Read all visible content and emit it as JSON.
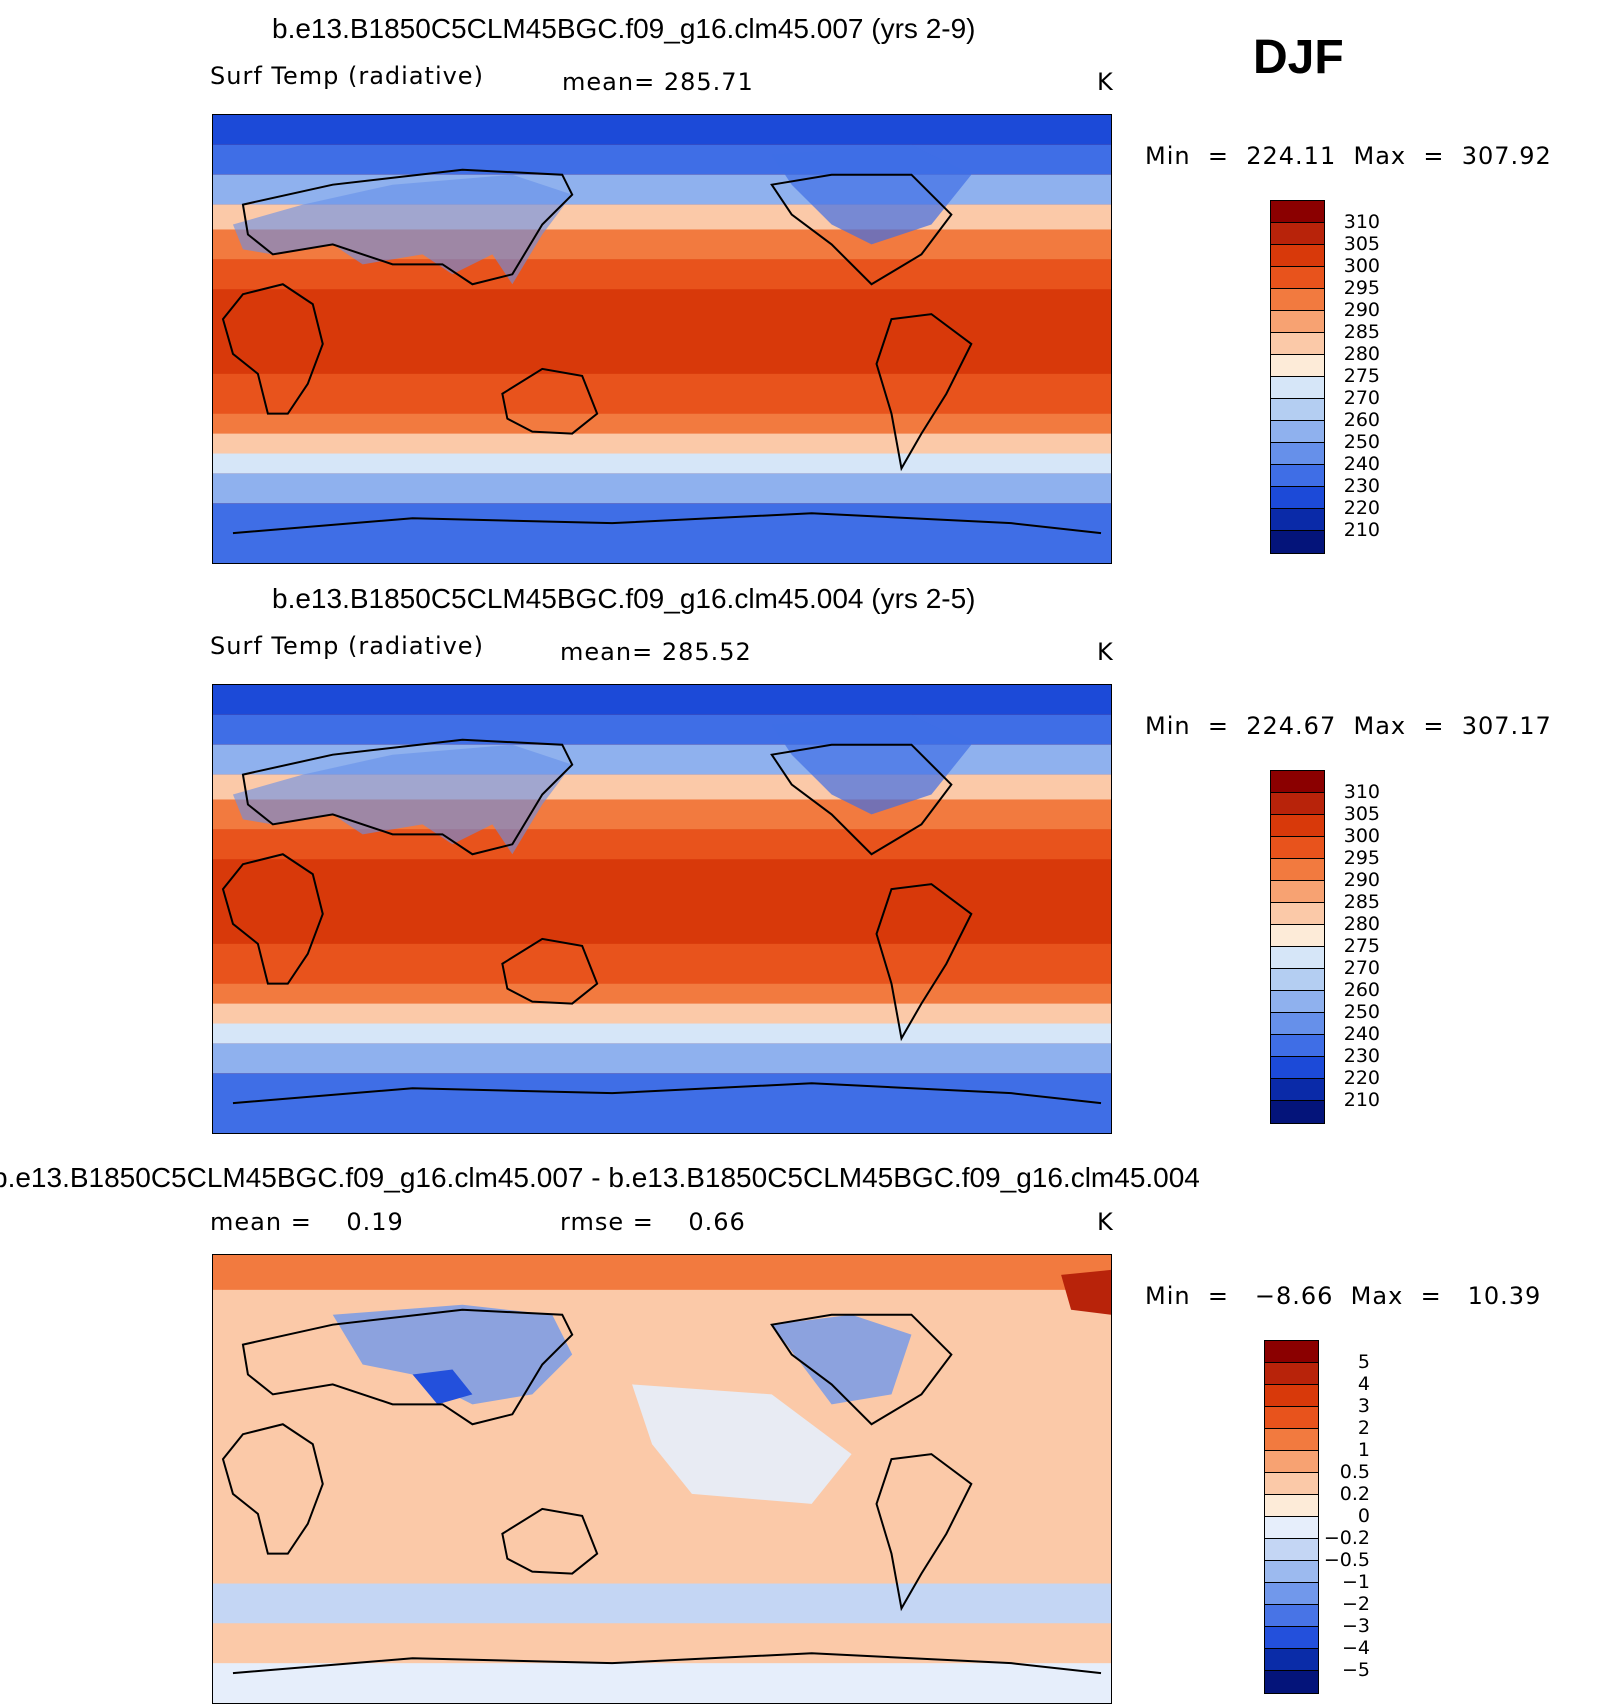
{
  "season": "DJF",
  "chart_data": [
    {
      "type": "heatmap",
      "title": "b.e13.B1850C5CLM45BGC.f09_g16.clm45.007 (yrs 2-9)",
      "variable": "Surf Temp (radiative)",
      "mean_label": "mean=",
      "mean": "285.71",
      "units": "K",
      "min_label": "Min",
      "max_label": "Max",
      "eq": "=",
      "min": "224.11",
      "max": "307.92",
      "colorbar": {
        "levels": [
          "310",
          "305",
          "300",
          "295",
          "290",
          "285",
          "280",
          "275",
          "270",
          "260",
          "250",
          "240",
          "230",
          "220",
          "210"
        ],
        "colors": [
          "#8b0000",
          "#b8230a",
          "#d8390a",
          "#e8531c",
          "#f27a3f",
          "#f7a272",
          "#fbc9a8",
          "#fdebd8",
          "#d6e6f8",
          "#b4cef2",
          "#8fb1ee",
          "#6690ea",
          "#3f6ee6",
          "#1c4ad8",
          "#0a2aa8",
          "#04147a"
        ]
      }
    },
    {
      "type": "heatmap",
      "title": "b.e13.B1850C5CLM45BGC.f09_g16.clm45.004 (yrs 2-5)",
      "variable": "Surf Temp (radiative)",
      "mean_label": "mean=",
      "mean": "285.52",
      "units": "K",
      "min_label": "Min",
      "max_label": "Max",
      "eq": "=",
      "min": "224.67",
      "max": "307.17",
      "colorbar": {
        "levels": [
          "310",
          "305",
          "300",
          "295",
          "290",
          "285",
          "280",
          "275",
          "270",
          "260",
          "250",
          "240",
          "230",
          "220",
          "210"
        ],
        "colors": [
          "#8b0000",
          "#b8230a",
          "#d8390a",
          "#e8531c",
          "#f27a3f",
          "#f7a272",
          "#fbc9a8",
          "#fdebd8",
          "#d6e6f8",
          "#b4cef2",
          "#8fb1ee",
          "#6690ea",
          "#3f6ee6",
          "#1c4ad8",
          "#0a2aa8",
          "#04147a"
        ]
      }
    },
    {
      "type": "heatmap",
      "title": "b.e13.B1850C5CLM45BGC.f09_g16.clm45.007 - b.e13.B1850C5CLM45BGC.f09_g16.clm45.004",
      "mean_label": "mean =",
      "mean": "0.19",
      "rmse_label": "rmse =",
      "rmse": "0.66",
      "units": "K",
      "min_label": "Min",
      "max_label": "Max",
      "eq": "=",
      "min": "−8.66",
      "max": "10.39",
      "colorbar": {
        "levels": [
          "5",
          "4",
          "3",
          "2",
          "1",
          "0.5",
          "0.2",
          "0",
          "−0.2",
          "−0.5",
          "−1",
          "−2",
          "−3",
          "−4",
          "−5"
        ],
        "colors": [
          "#8b0000",
          "#b8230a",
          "#d8390a",
          "#e8531c",
          "#f27a3f",
          "#f7a272",
          "#fbc9a8",
          "#fdebd8",
          "#e6eefb",
          "#c4d6f4",
          "#9cbaef",
          "#7198eb",
          "#4874e6",
          "#2350dc",
          "#0a2ca8",
          "#04147a"
        ]
      }
    }
  ]
}
